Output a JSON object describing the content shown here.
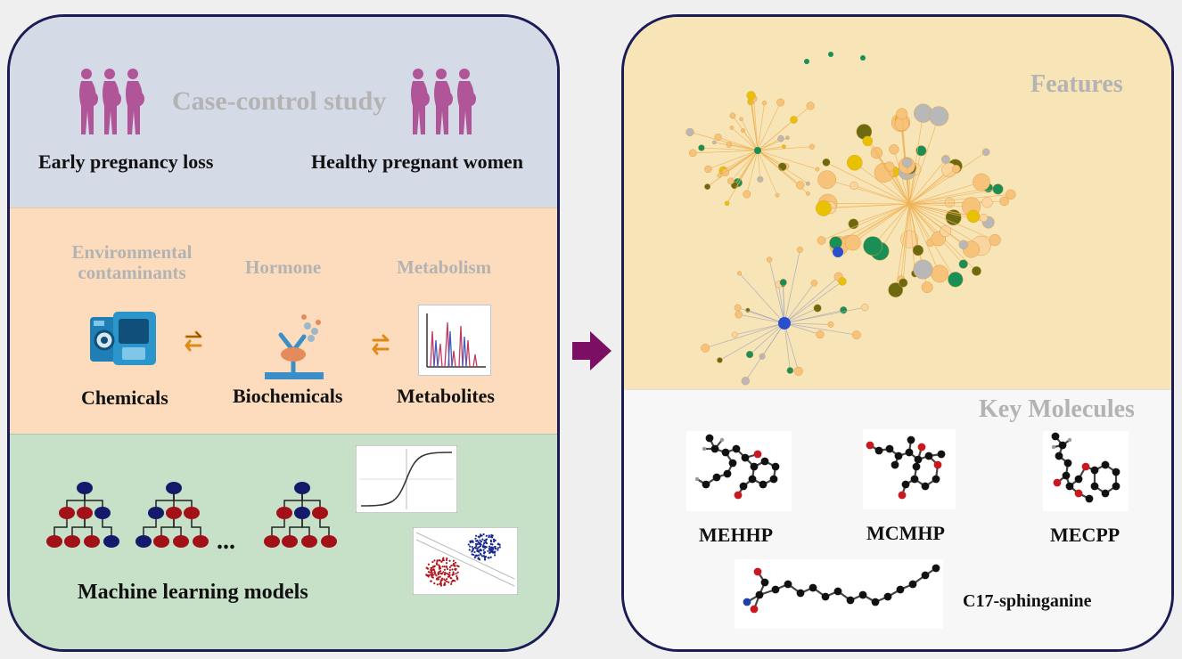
{
  "study": {
    "title": "Case-control study",
    "group_case": "Early pregnancy loss",
    "group_control": "Healthy pregnant women"
  },
  "omics": {
    "label_env": "Environmental contaminants",
    "label_hormone": "Hormone",
    "label_metabolism": "Metabolism",
    "item_chemicals": "Chemicals",
    "item_biochemicals": "Biochemicals",
    "item_metabolites": "Metabolites"
  },
  "ml": {
    "ellipsis": "...",
    "label": "Machine learning models"
  },
  "features": {
    "title": "Features"
  },
  "molecules": {
    "title": "Key Molecules",
    "items": [
      "MEHHP",
      "MCMHP",
      "MECPP",
      "C17-sphinganine"
    ]
  },
  "colors": {
    "panel_border": "#1b1b55",
    "arrow": "#7a0f63",
    "pregnant_icon": "#b05598",
    "tree_root": "#141a6b",
    "tree_leaf": "#a31118",
    "node_orange": "#f7c27a",
    "node_green": "#1a8f55",
    "node_blue": "#2a4fcc",
    "node_gray": "#b8b8b8"
  }
}
